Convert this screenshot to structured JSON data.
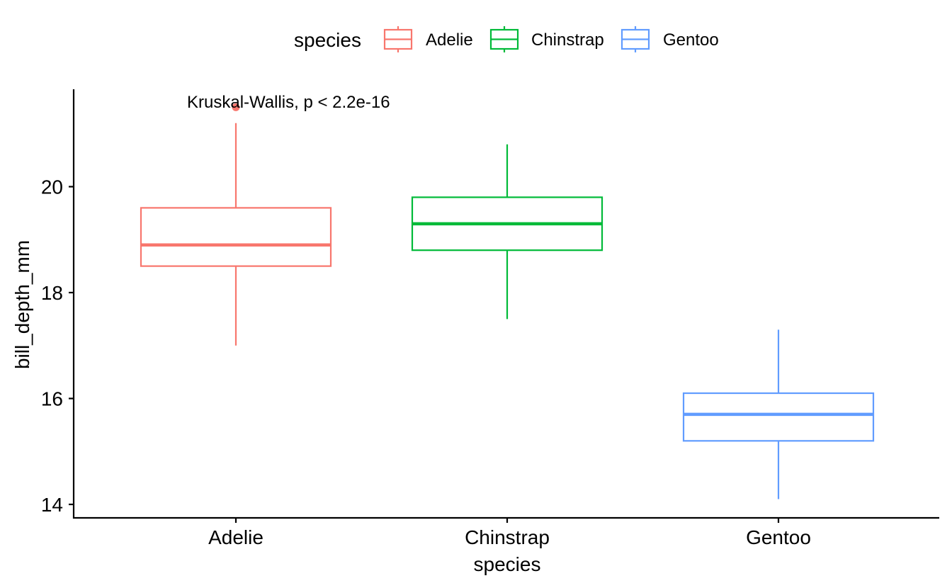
{
  "chart_data": {
    "type": "box",
    "title": "",
    "xlabel": "species",
    "ylabel": "bill_depth_mm",
    "ylim": [
      13.75,
      21.85
    ],
    "yticks": [
      14,
      16,
      18,
      20
    ],
    "categories": [
      "Adelie",
      "Chinstrap",
      "Gentoo"
    ],
    "annotation": "Kruskal-Wallis, p < 2.2e-16",
    "grid": false,
    "legend": {
      "title": "species",
      "position": "top",
      "entries": [
        "Adelie",
        "Chinstrap",
        "Gentoo"
      ]
    },
    "series": [
      {
        "name": "Adelie",
        "color": "#F8766D",
        "whisker_low": 17.0,
        "q1": 18.5,
        "median": 18.9,
        "q3": 19.6,
        "whisker_high": 21.2,
        "outliers": [
          21.5
        ]
      },
      {
        "name": "Chinstrap",
        "color": "#00BA38",
        "whisker_low": 17.5,
        "q1": 18.8,
        "median": 19.3,
        "q3": 19.8,
        "whisker_high": 20.8,
        "outliers": []
      },
      {
        "name": "Gentoo",
        "color": "#619CFF",
        "whisker_low": 14.1,
        "q1": 15.2,
        "median": 15.7,
        "q3": 16.1,
        "whisker_high": 17.3,
        "outliers": []
      }
    ]
  }
}
